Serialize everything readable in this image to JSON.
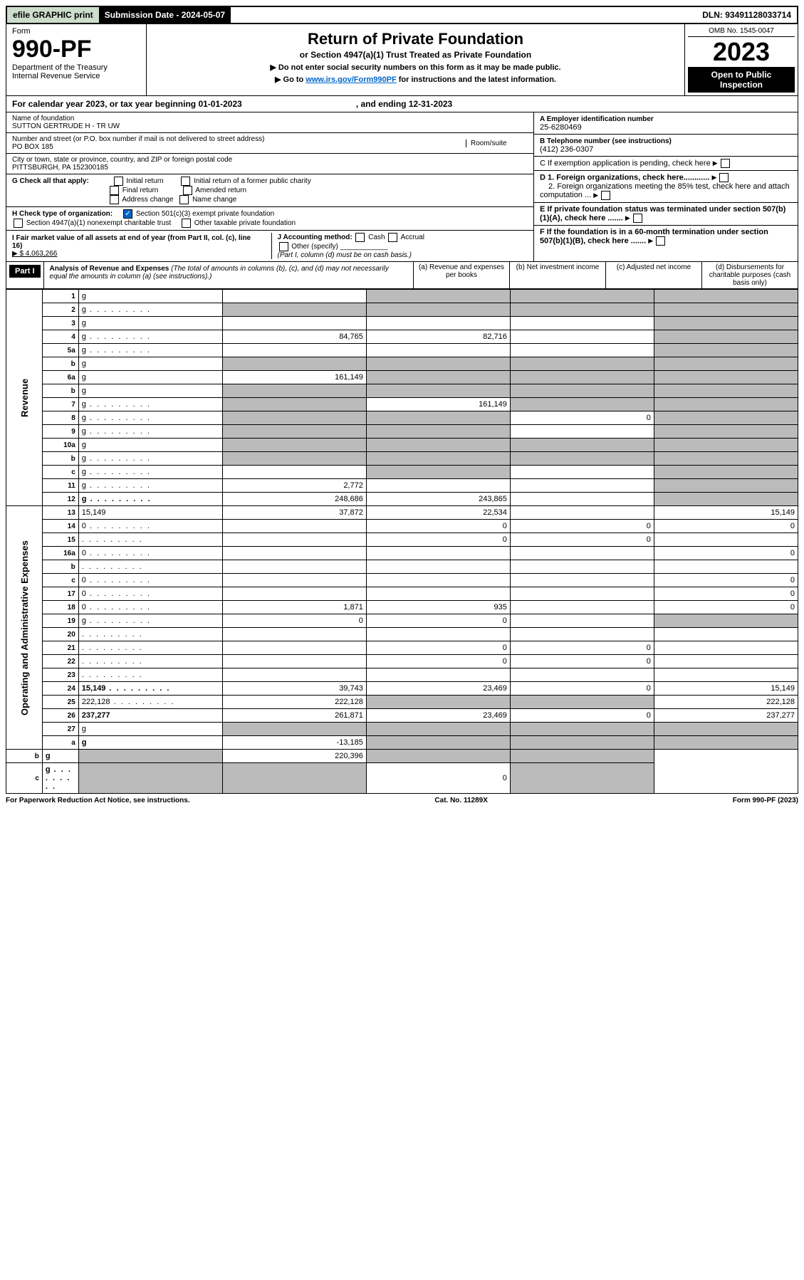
{
  "topbar": {
    "efile": "efile GRAPHIC print",
    "subdate_label": "Submission Date - 2024-05-07",
    "dln": "DLN: 93491128033714"
  },
  "header": {
    "form_label": "Form",
    "form_num": "990-PF",
    "dept": "Department of the Treasury",
    "irs": "Internal Revenue Service",
    "title": "Return of Private Foundation",
    "subtitle": "or Section 4947(a)(1) Trust Treated as Private Foundation",
    "note1": "▶ Do not enter social security numbers on this form as it may be made public.",
    "note2_pre": "▶ Go to ",
    "note2_link": "www.irs.gov/Form990PF",
    "note2_post": " for instructions and the latest information.",
    "omb": "OMB No. 1545-0047",
    "year": "2023",
    "open": "Open to Public Inspection"
  },
  "cal": {
    "text": "For calendar year 2023, or tax year beginning 01-01-2023",
    "ending": ", and ending 12-31-2023"
  },
  "info": {
    "name_lbl": "Name of foundation",
    "name": "SUTTON GERTRUDE H - TR UW",
    "addr_lbl": "Number and street (or P.O. box number if mail is not delivered to street address)",
    "room_lbl": "Room/suite",
    "addr": "PO BOX 185",
    "city_lbl": "City or town, state or province, country, and ZIP or foreign postal code",
    "city": "PITTSBURGH, PA  152300185",
    "ein_lbl": "A Employer identification number",
    "ein": "25-6280469",
    "tel_lbl": "B Telephone number (see instructions)",
    "tel": "(412) 236-0307",
    "c": "C If exemption application is pending, check here",
    "d1": "D 1. Foreign organizations, check here............",
    "d2": "2. Foreign organizations meeting the 85% test, check here and attach computation ...",
    "e": "E  If private foundation status was terminated under section 507(b)(1)(A), check here .......",
    "f": "F  If the foundation is in a 60-month termination under section 507(b)(1)(B), check here .......",
    "g_lbl": "G Check all that apply:",
    "g_opts": [
      "Initial return",
      "Final return",
      "Address change",
      "Initial return of a former public charity",
      "Amended return",
      "Name change"
    ],
    "h_lbl": "H Check type of organization:",
    "h1": "Section 501(c)(3) exempt private foundation",
    "h2": "Section 4947(a)(1) nonexempt charitable trust",
    "h3": "Other taxable private foundation",
    "i_lbl": "I Fair market value of all assets at end of year (from Part II, col. (c), line 16)",
    "i_val": "▶ $  4,063,266",
    "j_lbl": "J Accounting method:",
    "j_cash": "Cash",
    "j_acc": "Accrual",
    "j_other": "Other (specify)",
    "j_note": "(Part I, column (d) must be on cash basis.)"
  },
  "part1": {
    "label": "Part I",
    "title": "Analysis of Revenue and Expenses",
    "sub": "(The total of amounts in columns (b), (c), and (d) may not necessarily equal the amounts in column (a) (see instructions).)",
    "cols": {
      "a": "(a)   Revenue and expenses per books",
      "b": "(b)   Net investment income",
      "c": "(c)   Adjusted net income",
      "d": "(d)   Disbursements for charitable purposes (cash basis only)"
    }
  },
  "sections": {
    "rev": "Revenue",
    "op": "Operating and Administrative Expenses"
  },
  "rows": [
    {
      "n": "1",
      "d": "g",
      "a": "",
      "b": "g",
      "c": "g"
    },
    {
      "n": "2",
      "d": "g",
      "a": "g",
      "b": "g",
      "c": "g",
      "dots": true,
      "chk": true
    },
    {
      "n": "3",
      "d": "g",
      "a": "",
      "b": "",
      "c": ""
    },
    {
      "n": "4",
      "d": "g",
      "a": "84,765",
      "b": "82,716",
      "c": "",
      "dots": true
    },
    {
      "n": "5a",
      "d": "g",
      "a": "",
      "b": "",
      "c": "",
      "dots": true
    },
    {
      "n": "b",
      "d": "g",
      "a": "g",
      "b": "g",
      "c": "g",
      "inset": true
    },
    {
      "n": "6a",
      "d": "g",
      "a": "161,149",
      "b": "g",
      "c": "g"
    },
    {
      "n": "b",
      "d": "g",
      "a": "g",
      "b": "g",
      "c": "g"
    },
    {
      "n": "7",
      "d": "g",
      "a": "g",
      "b": "161,149",
      "c": "g",
      "dots": true
    },
    {
      "n": "8",
      "d": "g",
      "a": "g",
      "b": "g",
      "c": "0",
      "dots": true
    },
    {
      "n": "9",
      "d": "g",
      "a": "g",
      "b": "g",
      "c": "",
      "dots": true
    },
    {
      "n": "10a",
      "d": "g",
      "a": "g",
      "b": "g",
      "c": "g",
      "inset": true
    },
    {
      "n": "b",
      "d": "g",
      "a": "g",
      "b": "g",
      "c": "g",
      "inset": true,
      "dots": true
    },
    {
      "n": "c",
      "d": "g",
      "a": "",
      "b": "g",
      "c": "",
      "dots": true
    },
    {
      "n": "11",
      "d": "g",
      "a": "2,772",
      "b": "",
      "c": "",
      "dots": true
    },
    {
      "n": "12",
      "d": "g",
      "a": "248,686",
      "b": "243,865",
      "c": "",
      "bold": true,
      "dots": true
    },
    {
      "n": "13",
      "d": "15,149",
      "a": "37,872",
      "b": "22,534",
      "c": ""
    },
    {
      "n": "14",
      "d": "0",
      "a": "",
      "b": "0",
      "c": "0",
      "dots": true
    },
    {
      "n": "15",
      "d": "",
      "a": "",
      "b": "0",
      "c": "0",
      "dots": true
    },
    {
      "n": "16a",
      "d": "0",
      "a": "",
      "b": "",
      "c": "",
      "dots": true
    },
    {
      "n": "b",
      "d": "",
      "a": "",
      "b": "",
      "c": "",
      "dots": true
    },
    {
      "n": "c",
      "d": "0",
      "a": "",
      "b": "",
      "c": "",
      "dots": true
    },
    {
      "n": "17",
      "d": "0",
      "a": "",
      "b": "",
      "c": "",
      "dots": true
    },
    {
      "n": "18",
      "d": "0",
      "a": "1,871",
      "b": "935",
      "c": "",
      "dots": true
    },
    {
      "n": "19",
      "d": "g",
      "a": "0",
      "b": "0",
      "c": "",
      "dots": true
    },
    {
      "n": "20",
      "d": "",
      "a": "",
      "b": "",
      "c": "",
      "dots": true
    },
    {
      "n": "21",
      "d": "",
      "a": "",
      "b": "0",
      "c": "0",
      "dots": true
    },
    {
      "n": "22",
      "d": "",
      "a": "",
      "b": "0",
      "c": "0",
      "dots": true
    },
    {
      "n": "23",
      "d": "",
      "a": "",
      "b": "",
      "c": "",
      "dots": true
    },
    {
      "n": "24",
      "d": "15,149",
      "a": "39,743",
      "b": "23,469",
      "c": "0",
      "bold": true,
      "dots": true
    },
    {
      "n": "25",
      "d": "222,128",
      "a": "222,128",
      "b": "g",
      "c": "g",
      "dots": true
    },
    {
      "n": "26",
      "d": "237,277",
      "a": "261,871",
      "b": "23,469",
      "c": "0",
      "bold": true
    },
    {
      "n": "27",
      "d": "g",
      "a": "g",
      "b": "g",
      "c": "g"
    },
    {
      "n": "a",
      "d": "g",
      "a": "-13,185",
      "b": "g",
      "c": "g",
      "bold": true
    },
    {
      "n": "b",
      "d": "g",
      "a": "g",
      "b": "220,396",
      "c": "g",
      "bold": true
    },
    {
      "n": "c",
      "d": "g",
      "a": "g",
      "b": "g",
      "c": "0",
      "bold": true,
      "dots": true
    }
  ],
  "footer": {
    "left": "For Paperwork Reduction Act Notice, see instructions.",
    "mid": "Cat. No. 11289X",
    "right": "Form 990-PF (2023)"
  }
}
